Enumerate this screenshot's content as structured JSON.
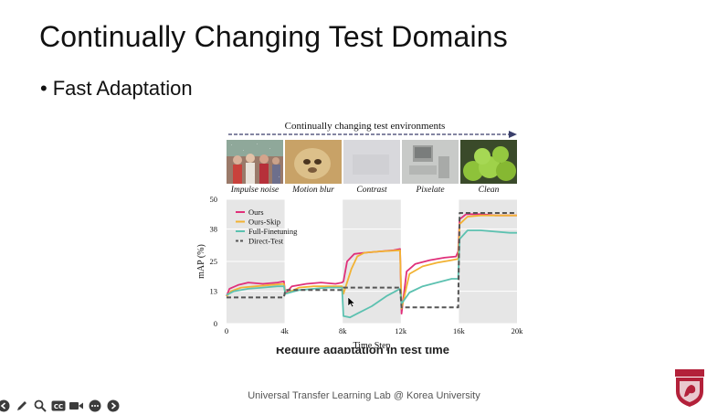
{
  "slide": {
    "title": "Continually Changing Test Domains",
    "bullet": "Fast Adaptation",
    "footer": "Universal Transfer Learning Lab @ Korea University",
    "cut_caption": "Require adaptation in test time"
  },
  "figure": {
    "banner": "Continually changing test environments",
    "domains": [
      "Impulse noise",
      "Motion blur",
      "Contrast",
      "Pixelate",
      "Clean"
    ]
  },
  "chart_data": {
    "type": "line",
    "xlabel": "Time Step",
    "ylabel": "mAP (%)",
    "ylim": [
      0,
      50
    ],
    "yticks": [
      0,
      13,
      25,
      38,
      50
    ],
    "xlim": [
      0,
      20000
    ],
    "xticks": [
      0,
      4000,
      8000,
      12000,
      16000,
      20000
    ],
    "xtick_labels": [
      "0",
      "4k",
      "8k",
      "12k",
      "16k",
      "20k"
    ],
    "shaded_segments": [
      [
        0,
        4000
      ],
      [
        8000,
        12000
      ],
      [
        16000,
        20000
      ]
    ],
    "legend_position": "top-left",
    "series": [
      {
        "name": "Ours",
        "color": "#e0307a",
        "dash": false,
        "x": [
          0,
          200,
          800,
          1500,
          2500,
          3500,
          3950,
          4050,
          4500,
          5500,
          6500,
          7500,
          7950,
          8050,
          8300,
          8800,
          9500,
          10500,
          11500,
          11950,
          12050,
          12400,
          13000,
          14000,
          15000,
          15800,
          15950,
          16050,
          16500,
          17500,
          18500,
          19500,
          20000
        ],
        "y": [
          11,
          14,
          15.5,
          16.5,
          16,
          16.5,
          17,
          12,
          15,
          16,
          16.5,
          16,
          16.5,
          17,
          25,
          28,
          28.5,
          29,
          29.5,
          30,
          4,
          21,
          24,
          25.5,
          26.5,
          27,
          29,
          42,
          44,
          44,
          43.5,
          43.5,
          43.5
        ]
      },
      {
        "name": "Ours-Skip",
        "color": "#f2b233",
        "dash": false,
        "x": [
          0,
          300,
          1000,
          2000,
          3000,
          3950,
          4050,
          5000,
          6000,
          7000,
          7950,
          8050,
          8600,
          9000,
          9500,
          10500,
          11950,
          12050,
          12600,
          13500,
          14500,
          15500,
          15950,
          16050,
          16600,
          17500,
          19000,
          20000
        ],
        "y": [
          11,
          13,
          14.5,
          15,
          15.5,
          16,
          12,
          14.5,
          15,
          15,
          15,
          12,
          22,
          27,
          28.5,
          29,
          29.5,
          6,
          20,
          23,
          24.5,
          25.5,
          26,
          40,
          43,
          43.5,
          43.5,
          43.5
        ]
      },
      {
        "name": "Full-Finetuning",
        "color": "#5cc1b0",
        "dash": false,
        "x": [
          0,
          500,
          1500,
          2500,
          3500,
          3950,
          4050,
          5000,
          6000,
          7000,
          7950,
          8050,
          8500,
          9000,
          10000,
          11000,
          11950,
          12050,
          12600,
          13500,
          14500,
          15500,
          15950,
          16050,
          16600,
          17500,
          18500,
          19500,
          20000
        ],
        "y": [
          11.5,
          13,
          14,
          14.5,
          15,
          15,
          12,
          13.5,
          14,
          14.5,
          14.5,
          3,
          2.5,
          4,
          7,
          11,
          14,
          8,
          12.5,
          15,
          16.5,
          18,
          18,
          34,
          37.5,
          37.5,
          37,
          36.5,
          36.5
        ]
      },
      {
        "name": "Direct-Test",
        "color": "#555555",
        "dash": true,
        "x": [
          0,
          3950,
          4050,
          7950,
          8050,
          11950,
          12050,
          15950,
          16050,
          20000
        ],
        "y": [
          10.5,
          10.5,
          13.5,
          13.5,
          14.5,
          14.5,
          6.5,
          6.5,
          44.5,
          44.5
        ]
      }
    ]
  },
  "toolbar": {
    "icons": [
      "left-arrow-icon",
      "pen-icon",
      "magnifier-icon",
      "captions-icon",
      "video-icon",
      "more-icon",
      "right-arrow-icon"
    ]
  },
  "colors": {
    "accent_pink": "#e0307a",
    "shade": "#e6e6e6",
    "logo_red": "#b3213a"
  }
}
